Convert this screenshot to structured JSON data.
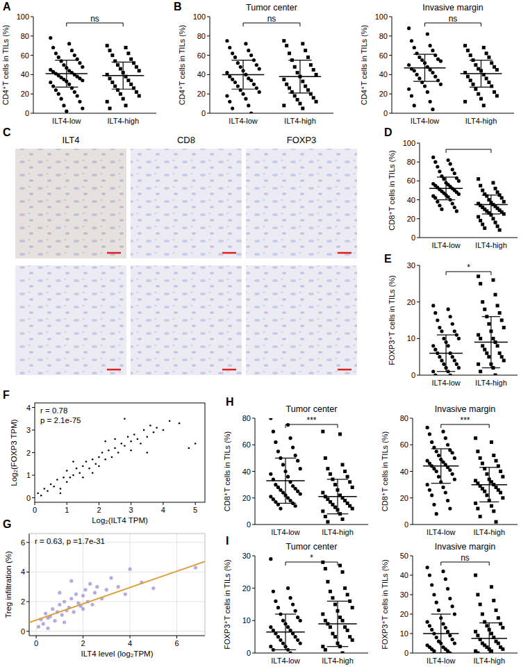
{
  "chart_data": [
    {
      "type": "dot",
      "panel": "A",
      "y_label": "CD4⁺T cells in TILs (%)",
      "categories": [
        "ILT4-low",
        "ILT4-high"
      ],
      "color": "#000000",
      "groups": [
        {
          "marker": "circle",
          "mean": 41,
          "sd": 14,
          "values": [
            78,
            72,
            68,
            65,
            62,
            60,
            58,
            56,
            54,
            52,
            50,
            48,
            47,
            45,
            44,
            43,
            42,
            41,
            40,
            39,
            38,
            37,
            36,
            35,
            34,
            33,
            32,
            30,
            28,
            26,
            24,
            22,
            20,
            18,
            15,
            12,
            8,
            5,
            2
          ]
        },
        {
          "marker": "square",
          "mean": 39,
          "sd": 14,
          "values": [
            70,
            68,
            65,
            62,
            60,
            56,
            54,
            52,
            50,
            48,
            46,
            44,
            42,
            40,
            38,
            36,
            34,
            32,
            30,
            28,
            26,
            24,
            22,
            20,
            18,
            15,
            12,
            8,
            5
          ]
        }
      ],
      "ylim": [
        0,
        100
      ],
      "yticks": [
        0,
        20,
        40,
        60,
        80,
        100
      ],
      "significance": "ns"
    },
    {
      "type": "dot",
      "panel": "B",
      "title": "Tumor center",
      "y_label": "CD4⁺T cells in TILs (%)",
      "categories": [
        "ILT4-low",
        "ILT4-high"
      ],
      "color": "#000000",
      "groups": [
        {
          "marker": "circle",
          "mean": 40,
          "sd": 15,
          "values": [
            75,
            72,
            68,
            65,
            62,
            60,
            58,
            55,
            52,
            50,
            48,
            46,
            44,
            42,
            40,
            38,
            36,
            35,
            34,
            32,
            30,
            28,
            26,
            24,
            22,
            20,
            18,
            15,
            12,
            8,
            5,
            0
          ]
        },
        {
          "marker": "square",
          "mean": 38,
          "sd": 17,
          "values": [
            75,
            72,
            70,
            65,
            62,
            58,
            55,
            50,
            48,
            45,
            42,
            40,
            38,
            35,
            33,
            30,
            28,
            26,
            24,
            22,
            20,
            18,
            16,
            14,
            12,
            10,
            8,
            5
          ]
        }
      ],
      "ylim": [
        0,
        100
      ],
      "yticks": [
        0,
        20,
        40,
        60,
        80,
        100
      ],
      "significance": "ns"
    },
    {
      "type": "dot",
      "title": "Invasive margin",
      "y_label": "CD4⁺T cells in TILs (%)",
      "categories": [
        "ILT4-low",
        "ILT4-high"
      ],
      "color": "#000000",
      "groups": [
        {
          "marker": "circle",
          "mean": 47,
          "sd": 14,
          "values": [
            88,
            82,
            75,
            70,
            68,
            65,
            62,
            60,
            58,
            56,
            55,
            54,
            52,
            50,
            48,
            46,
            45,
            44,
            42,
            40,
            38,
            36,
            34,
            32,
            30,
            28,
            25,
            22,
            18,
            12,
            8,
            4
          ]
        },
        {
          "marker": "square",
          "mean": 41,
          "sd": 14,
          "values": [
            70,
            68,
            65,
            62,
            60,
            58,
            55,
            52,
            50,
            48,
            46,
            45,
            44,
            42,
            40,
            38,
            36,
            34,
            32,
            30,
            28,
            25,
            22,
            20,
            18,
            15,
            12,
            8
          ]
        }
      ],
      "ylim": [
        0,
        100
      ],
      "yticks": [
        0,
        20,
        40,
        60,
        80,
        100
      ],
      "significance": "ns"
    },
    {
      "type": "image",
      "panel": "C",
      "titles": [
        "ILT4",
        "CD8",
        "FOXP3"
      ]
    },
    {
      "type": "dot",
      "panel": "D",
      "y_label": "CD8⁺T cells in TILs (%)",
      "categories": [
        "ILT4-low",
        "ILT4-high"
      ],
      "color": "#000000",
      "groups": [
        {
          "marker": "circle",
          "mean": 52,
          "sd": 12,
          "values": [
            85,
            82,
            80,
            78,
            75,
            72,
            70,
            68,
            65,
            63,
            62,
            60,
            58,
            57,
            56,
            55,
            54,
            53,
            52,
            51,
            50,
            49,
            48,
            47,
            46,
            45,
            44,
            43,
            42,
            40,
            38,
            36,
            34,
            32,
            30,
            28
          ]
        },
        {
          "marker": "square",
          "mean": 35,
          "sd": 10,
          "values": [
            62,
            58,
            55,
            52,
            50,
            48,
            46,
            45,
            44,
            42,
            40,
            38,
            37,
            36,
            35,
            34,
            33,
            32,
            31,
            30,
            29,
            28,
            27,
            26,
            25,
            24,
            22,
            20,
            18,
            16,
            14,
            12,
            10,
            8
          ]
        }
      ],
      "ylim": [
        0,
        100
      ],
      "yticks": [
        0,
        20,
        40,
        60,
        80,
        100
      ],
      "significance": null
    },
    {
      "type": "dot",
      "panel": "E",
      "y_label": "FOXP3⁺T cells in TILs (%)",
      "categories": [
        "ILT4-low",
        "ILT4-high"
      ],
      "color": "#000000",
      "groups": [
        {
          "marker": "circle",
          "mean": 6,
          "sd": 5,
          "values": [
            19,
            18,
            17,
            16,
            15,
            14,
            13,
            12,
            12,
            11,
            10,
            10,
            9,
            8,
            8,
            7,
            6,
            6,
            5,
            5,
            4,
            4,
            3,
            3,
            2,
            2,
            1,
            1,
            0,
            0
          ]
        },
        {
          "marker": "square",
          "mean": 9,
          "sd": 7,
          "values": [
            27,
            26,
            25,
            22,
            20,
            19,
            18,
            17,
            16,
            15,
            14,
            13,
            12,
            11,
            10,
            10,
            9,
            8,
            8,
            7,
            6,
            6,
            5,
            5,
            4,
            3,
            3,
            2,
            1,
            0
          ]
        }
      ],
      "ylim": [
        0,
        30
      ],
      "yticks": [
        0,
        10,
        20,
        30
      ],
      "significance": "*"
    },
    {
      "type": "scatter",
      "panel": "F",
      "x_label": "Log₂(ILT4 TPM)",
      "y_label": "Log₂(FOXP3 TPM)",
      "color": "#000000",
      "grid": false,
      "annotations": [
        "r = 0.78",
        "p = 2.1e-75"
      ],
      "x": [
        0.1,
        0.2,
        0.3,
        0.4,
        0.5,
        0.6,
        0.7,
        0.8,
        0.9,
        1.0,
        1.0,
        1.1,
        1.2,
        1.3,
        1.4,
        1.5,
        1.5,
        1.6,
        1.7,
        1.8,
        1.9,
        2.0,
        2.0,
        2.1,
        2.2,
        2.3,
        2.4,
        2.5,
        2.5,
        2.6,
        2.7,
        2.8,
        2.9,
        3.0,
        3.0,
        3.1,
        3.2,
        3.3,
        3.4,
        3.5,
        3.6,
        3.7,
        3.8,
        4.0,
        4.2,
        4.5,
        4.8,
        5.0,
        1.2,
        2.2,
        2.8,
        3.5,
        0.8,
        1.8
      ],
      "values": [
        0.2,
        0.1,
        0.4,
        0.3,
        0.6,
        0.5,
        0.8,
        0.4,
        0.9,
        0.7,
        1.2,
        0.9,
        1.0,
        1.3,
        1.1,
        1.4,
        0.9,
        1.6,
        1.3,
        1.7,
        1.5,
        1.8,
        1.4,
        2.0,
        1.7,
        2.1,
        1.8,
        2.2,
        2.6,
        2.0,
        2.4,
        2.3,
        2.7,
        2.5,
        2.1,
        2.8,
        2.6,
        2.4,
        3.0,
        2.7,
        3.2,
        2.9,
        3.1,
        3.0,
        3.4,
        3.3,
        2.2,
        2.4,
        1.6,
        2.5,
        3.5,
        2.0,
        0.2,
        1.1
      ],
      "xlim": [
        0,
        5.3
      ],
      "xticks": [
        0,
        1,
        2,
        3,
        4,
        5
      ],
      "ylim": [
        -0.2,
        4.2
      ],
      "yticks": [
        0,
        1,
        2,
        3,
        4
      ]
    },
    {
      "type": "scatter",
      "panel": "G",
      "x_label": "ILT4 level (log₂TPM)",
      "y_label": "Treg infiltration (%)",
      "color": "#9e8fd6",
      "grid": true,
      "annotations": [
        "r = 0.63, p =1.7e-31"
      ],
      "x": [
        0.1,
        0.2,
        0.3,
        0.4,
        0.5,
        0.6,
        0.7,
        0.8,
        0.9,
        1.0,
        1.1,
        1.2,
        1.3,
        1.4,
        1.5,
        1.6,
        1.7,
        1.8,
        1.9,
        2.0,
        2.1,
        2.2,
        2.3,
        2.4,
        2.5,
        2.6,
        2.8,
        3.0,
        3.2,
        3.5,
        3.8,
        4.0,
        4.5,
        5.0,
        6.8,
        0.5,
        1.0,
        1.5,
        2.0,
        1.2
      ],
      "values": [
        0.3,
        0.8,
        0.5,
        1.2,
        0.9,
        1.0,
        1.5,
        0.7,
        1.3,
        1.8,
        1.1,
        2.0,
        1.4,
        1.6,
        2.2,
        1.3,
        2.5,
        1.9,
        1.7,
        2.4,
        2.8,
        2.0,
        3.2,
        1.8,
        2.6,
        3.0,
        2.2,
        2.8,
        3.6,
        3.0,
        2.5,
        4.2,
        3.3,
        2.9,
        4.3,
        0.2,
        2.6,
        3.4,
        1.5,
        0.6
      ],
      "fit": {
        "slope": 0.55,
        "intercept": 0.75,
        "color": "#d9a03a"
      },
      "xlim": [
        -0.3,
        7.2
      ],
      "xticks": [
        0,
        2,
        4,
        6
      ],
      "ylim": [
        -0.3,
        6.6
      ],
      "yticks": [
        0,
        2,
        4,
        6
      ]
    },
    {
      "type": "dot",
      "panel": "H",
      "title": "Tumor center",
      "y_label": "CD8⁺T cells in TILs (%)",
      "categories": [
        "ILT4-low",
        "ILT4-high"
      ],
      "color": "#000000",
      "groups": [
        {
          "marker": "circle",
          "mean": 33,
          "sd": 17,
          "values": [
            80,
            75,
            70,
            65,
            62,
            58,
            55,
            52,
            50,
            48,
            45,
            42,
            40,
            38,
            36,
            34,
            32,
            30,
            29,
            28,
            27,
            26,
            25,
            24,
            23,
            22,
            21,
            20,
            19,
            18,
            17,
            16,
            15,
            14,
            12
          ]
        },
        {
          "marker": "square",
          "mean": 21,
          "sd": 13,
          "values": [
            70,
            68,
            50,
            45,
            42,
            40,
            38,
            36,
            34,
            32,
            30,
            28,
            26,
            24,
            22,
            21,
            20,
            19,
            18,
            17,
            16,
            15,
            14,
            13,
            12,
            11,
            10,
            8,
            6,
            4,
            2
          ]
        }
      ],
      "ylim": [
        0,
        80
      ],
      "yticks": [
        0,
        20,
        40,
        60,
        80
      ],
      "significance": "***"
    },
    {
      "type": "dot",
      "title": "Invasive margin",
      "y_label": "CD8⁺T cells in TILs (%)",
      "categories": [
        "ILT4-low",
        "ILT4-high"
      ],
      "color": "#000000",
      "groups": [
        {
          "marker": "circle",
          "mean": 44,
          "sd": 13,
          "values": [
            73,
            70,
            68,
            65,
            62,
            60,
            58,
            56,
            55,
            54,
            52,
            50,
            49,
            48,
            47,
            46,
            45,
            44,
            43,
            42,
            41,
            40,
            38,
            36,
            34,
            32,
            30,
            28,
            26,
            24,
            22,
            18,
            15,
            12,
            8
          ]
        },
        {
          "marker": "square",
          "mean": 30,
          "sd": 13,
          "values": [
            65,
            62,
            55,
            52,
            50,
            48,
            46,
            44,
            42,
            40,
            38,
            36,
            34,
            33,
            32,
            31,
            30,
            29,
            28,
            27,
            26,
            25,
            24,
            22,
            20,
            18,
            16,
            14,
            12,
            10,
            6,
            2
          ]
        }
      ],
      "ylim": [
        0,
        80
      ],
      "yticks": [
        0,
        20,
        40,
        60,
        80
      ],
      "significance": "***"
    },
    {
      "type": "dot",
      "panel": "I",
      "title": "Tumor center",
      "y_label": "FOXP3⁺T cells in TILs (%)",
      "categories": [
        "ILT4-low",
        "ILT4-high"
      ],
      "color": "#000000",
      "groups": [
        {
          "marker": "circle",
          "mean": 6.5,
          "sd": 5.5,
          "values": [
            29,
            20,
            19,
            17,
            16,
            15,
            14,
            13,
            12,
            11,
            10,
            10,
            9,
            8,
            8,
            7,
            7,
            6,
            6,
            5,
            5,
            4,
            4,
            3,
            3,
            2,
            2,
            1,
            1,
            0
          ]
        },
        {
          "marker": "square",
          "mean": 9,
          "sd": 7,
          "values": [
            28,
            27,
            26,
            25,
            22,
            20,
            19,
            18,
            17,
            16,
            15,
            14,
            13,
            12,
            11,
            10,
            10,
            9,
            8,
            8,
            7,
            6,
            5,
            5,
            4,
            3,
            2,
            2,
            1,
            0
          ]
        }
      ],
      "ylim": [
        0,
        30
      ],
      "yticks": [
        0,
        10,
        20,
        30
      ],
      "significance": "*"
    },
    {
      "type": "dot",
      "title": "Invasive margin",
      "y_label": "FOXP3⁺T cells in TILs (%)",
      "categories": [
        "ILT4-low",
        "ILT4-high"
      ],
      "color": "#000000",
      "groups": [
        {
          "marker": "circle",
          "mean": 10,
          "sd": 10,
          "values": [
            44,
            42,
            40,
            38,
            35,
            33,
            30,
            28,
            26,
            24,
            22,
            20,
            18,
            16,
            15,
            14,
            13,
            12,
            11,
            10,
            9,
            8,
            7,
            6,
            5,
            5,
            4,
            3,
            3,
            2,
            2,
            1,
            1,
            0
          ]
        },
        {
          "marker": "square",
          "mean": 7.5,
          "sd": 8,
          "values": [
            40,
            34,
            30,
            27,
            25,
            22,
            20,
            18,
            16,
            15,
            14,
            13,
            12,
            11,
            10,
            9,
            8,
            7,
            6,
            5,
            5,
            4,
            3,
            3,
            2,
            2,
            1,
            1,
            0
          ]
        }
      ],
      "ylim": [
        0,
        50
      ],
      "yticks": [
        0,
        10,
        20,
        30,
        40,
        50
      ],
      "significance": "ns"
    }
  ]
}
